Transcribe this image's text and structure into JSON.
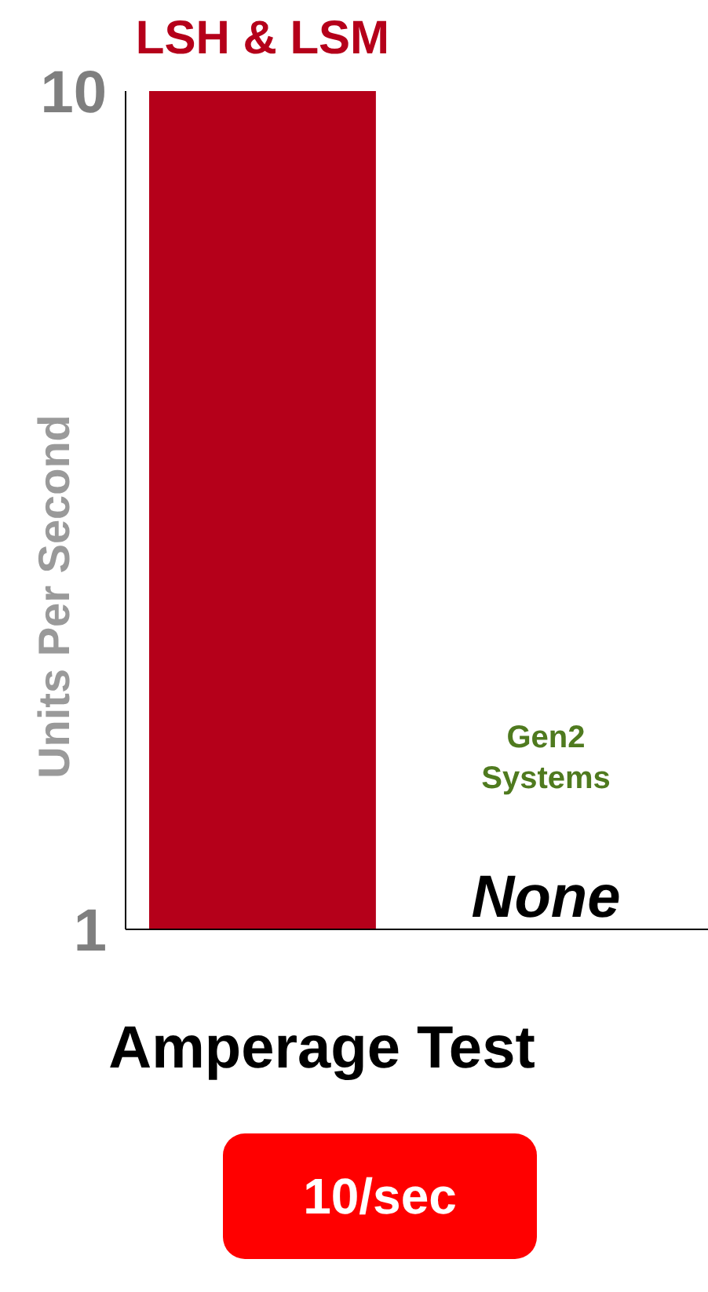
{
  "chart_data": {
    "type": "bar",
    "title": "Amperage Test",
    "ylabel": "Units Per Second",
    "categories": [
      "LSH & LSM",
      "Gen2 Systems"
    ],
    "values": [
      10,
      null
    ],
    "colors": [
      "#b5001a",
      "#4f7a1f"
    ],
    "value_labels": [
      null,
      "None"
    ],
    "ylim": [
      1,
      10
    ],
    "yticks": [
      1,
      10
    ],
    "grid": false,
    "annotations": [
      "10/sec"
    ]
  }
}
